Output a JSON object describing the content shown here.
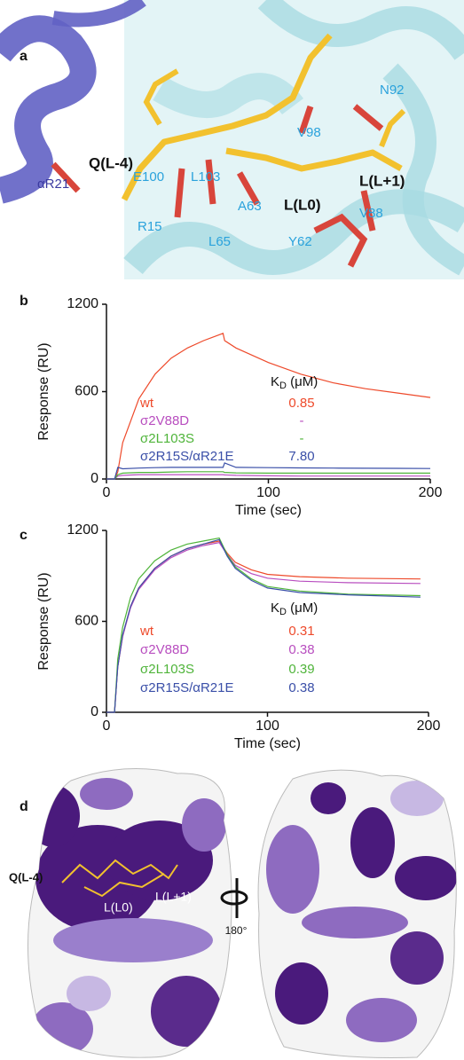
{
  "panel_a": {
    "label": "a",
    "residues": [
      "Q(L-4)",
      "αR21",
      "E100",
      "L103",
      "R15",
      "L65",
      "A63",
      "Y62",
      "V88",
      "L(L0)",
      "L(L+1)",
      "N92",
      "V98"
    ]
  },
  "chart_data": [
    {
      "type": "line",
      "panel_label": "b",
      "x_label": "Time (sec)",
      "y_label": "Response (RU)",
      "x": [
        0,
        5,
        7,
        10,
        20,
        30,
        40,
        50,
        60,
        72,
        73,
        80,
        100,
        120,
        140,
        160,
        180,
        200
      ],
      "xlim": [
        0,
        200
      ],
      "xticks": [
        0,
        100,
        200
      ],
      "ylim": [
        0,
        1200
      ],
      "yticks": [
        0,
        600,
        1200
      ],
      "kd_header": {
        "symbol": "K",
        "subscript": "D",
        "unit": " (μM)"
      },
      "series": [
        {
          "name": "wt",
          "color": "#ee4a2b",
          "kd_label": "0.85",
          "values": [
            0,
            0,
            50,
            250,
            550,
            720,
            830,
            900,
            950,
            1000,
            950,
            900,
            800,
            720,
            660,
            620,
            590,
            560
          ]
        },
        {
          "name": "σ2V88D",
          "color": "#b84dbf",
          "kd_label": "-",
          "values": [
            0,
            0,
            20,
            25,
            30,
            30,
            30,
            30,
            30,
            30,
            28,
            25,
            22,
            20,
            20,
            20,
            20,
            20
          ]
        },
        {
          "name": "σ2L103S",
          "color": "#4fb43a",
          "kd_label": "-",
          "values": [
            0,
            0,
            30,
            40,
            45,
            45,
            48,
            50,
            50,
            50,
            45,
            42,
            40,
            40,
            40,
            40,
            40,
            40
          ]
        },
        {
          "name": "σ2R15S/αR21E",
          "color": "#3a4fa8",
          "kd_label": "7.80",
          "values": [
            0,
            0,
            80,
            70,
            75,
            78,
            80,
            80,
            80,
            80,
            110,
            80,
            78,
            76,
            75,
            74,
            73,
            72
          ]
        }
      ]
    },
    {
      "type": "line",
      "panel_label": "c",
      "x_label": "Time (sec)",
      "y_label": "Response (RU)",
      "x": [
        0,
        5,
        7,
        10,
        15,
        20,
        30,
        40,
        50,
        60,
        70,
        75,
        80,
        90,
        100,
        120,
        150,
        195
      ],
      "xlim": [
        0,
        200
      ],
      "xticks": [
        0,
        100,
        200
      ],
      "ylim": [
        0,
        1200
      ],
      "yticks": [
        0,
        600,
        1200
      ],
      "kd_header": {
        "symbol": "K",
        "subscript": "D",
        "unit": " (μM)"
      },
      "series": [
        {
          "name": "wt",
          "color": "#ee4a2b",
          "kd_label": "0.31",
          "values": [
            0,
            0,
            300,
            500,
            700,
            820,
            950,
            1030,
            1080,
            1110,
            1130,
            1050,
            990,
            940,
            910,
            895,
            885,
            880
          ]
        },
        {
          "name": "σ2V88D",
          "color": "#b84dbf",
          "kd_label": "0.38",
          "values": [
            0,
            0,
            300,
            500,
            690,
            810,
            940,
            1020,
            1070,
            1100,
            1120,
            1040,
            970,
            915,
            885,
            865,
            855,
            850
          ]
        },
        {
          "name": "σ2L103S",
          "color": "#4fb43a",
          "kd_label": "0.39",
          "values": [
            0,
            0,
            350,
            560,
            760,
            880,
            1000,
            1070,
            1110,
            1130,
            1150,
            1040,
            960,
            880,
            830,
            800,
            780,
            770
          ]
        },
        {
          "name": "σ2R15S/αR21E",
          "color": "#3a4fa8",
          "kd_label": "0.38",
          "values": [
            0,
            0,
            300,
            510,
            700,
            820,
            950,
            1030,
            1080,
            1110,
            1140,
            1030,
            950,
            870,
            820,
            790,
            775,
            760
          ]
        }
      ]
    }
  ],
  "panel_d": {
    "label": "d",
    "residues": [
      "Q(L-4)",
      "L(L0)",
      "L(L+1)"
    ],
    "rotation": "180°"
  }
}
